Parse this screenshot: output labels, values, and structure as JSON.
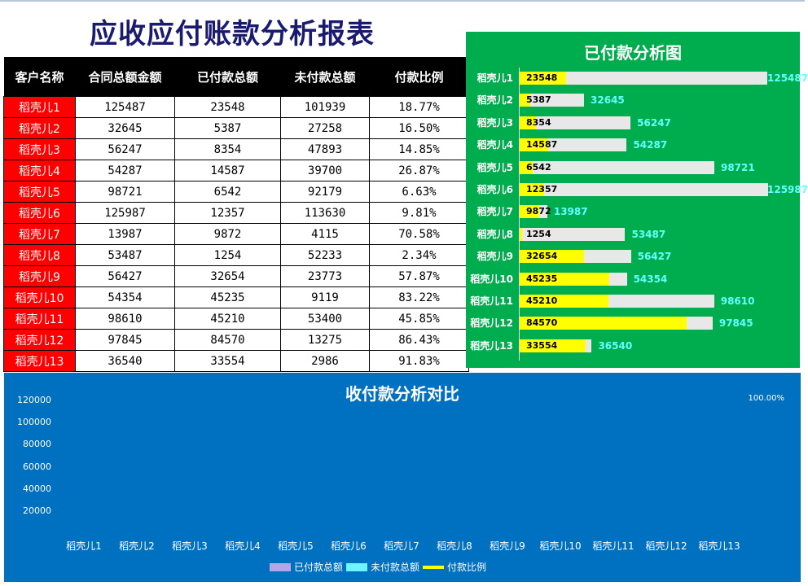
{
  "title": "应收应付账款分析报表",
  "table": {
    "headers": [
      "客户名称",
      "合同总额金额",
      "已付款总额",
      "未付款总额",
      "付款比例"
    ],
    "rows": [
      [
        "稻壳儿1",
        "125487",
        "23548",
        "101939",
        "18.77%"
      ],
      [
        "稻壳儿2",
        "32645",
        "5387",
        "27258",
        "16.50%"
      ],
      [
        "稻壳儿3",
        "56247",
        "8354",
        "47893",
        "14.85%"
      ],
      [
        "稻壳儿4",
        "54287",
        "14587",
        "39700",
        "26.87%"
      ],
      [
        "稻壳儿5",
        "98721",
        "6542",
        "92179",
        "6.63%"
      ],
      [
        "稻壳儿6",
        "125987",
        "12357",
        "113630",
        "9.81%"
      ],
      [
        "稻壳儿7",
        "13987",
        "9872",
        "4115",
        "70.58%"
      ],
      [
        "稻壳儿8",
        "53487",
        "1254",
        "52233",
        "2.34%"
      ],
      [
        "稻壳儿9",
        "56427",
        "32654",
        "23773",
        "57.87%"
      ],
      [
        "稻壳儿10",
        "54354",
        "45235",
        "9119",
        "83.22%"
      ],
      [
        "稻壳儿11",
        "98610",
        "45210",
        "53400",
        "45.85%"
      ],
      [
        "稻壳儿12",
        "97845",
        "84570",
        "13275",
        "86.43%"
      ],
      [
        "稻壳儿13",
        "36540",
        "33554",
        "2986",
        "91.83%"
      ]
    ]
  },
  "chart_data": [
    {
      "type": "bar",
      "orientation": "horizontal",
      "title": "已付款分析图",
      "categories": [
        "稻壳儿1",
        "稻壳儿2",
        "稻壳儿3",
        "稻壳儿4",
        "稻壳儿5",
        "稻壳儿6",
        "稻壳儿7",
        "稻壳儿8",
        "稻壳儿9",
        "稻壳儿10",
        "稻壳儿11",
        "稻壳儿12",
        "稻壳儿13"
      ],
      "series": [
        {
          "values": [
            23548,
            5387,
            8354,
            14587,
            6542,
            12357,
            9872,
            1254,
            32654,
            45235,
            45210,
            84570,
            33554
          ],
          "color": "#ffff00"
        },
        {
          "values": [
            125487,
            32645,
            56247,
            54287,
            98721,
            125987,
            13987,
            53487,
            56427,
            54354,
            98610,
            97845,
            36540
          ],
          "color": "#e8e8e8"
        }
      ],
      "xlim": [
        0,
        125987
      ],
      "overlap": true
    },
    {
      "type": "bar",
      "title": "收付款分析对比",
      "categories": [
        "稻壳儿1",
        "稻壳儿2",
        "稻壳儿3",
        "稻壳儿4",
        "稻壳儿5",
        "稻壳儿6",
        "稻壳儿7",
        "稻壳儿8",
        "稻壳儿9",
        "稻壳儿10",
        "稻壳儿11",
        "稻壳儿12",
        "稻壳儿13"
      ],
      "yticks": [
        "120000",
        "100000",
        "80000",
        "60000",
        "40000",
        "20000"
      ],
      "y2_label": "100.00%",
      "ylim": [
        0,
        120000
      ],
      "legend": [
        {
          "name": "已付款总额",
          "color": "#b4a7e8"
        },
        {
          "name": "未付款总额",
          "color": "#6ff5ff"
        },
        {
          "name": "付款比例",
          "color": "#ffff00"
        }
      ],
      "legend_position": "bottom"
    }
  ],
  "colors": {
    "green_panel": "#00ad4e",
    "blue_panel": "#0070c0",
    "name_cell": "#ff0000"
  }
}
